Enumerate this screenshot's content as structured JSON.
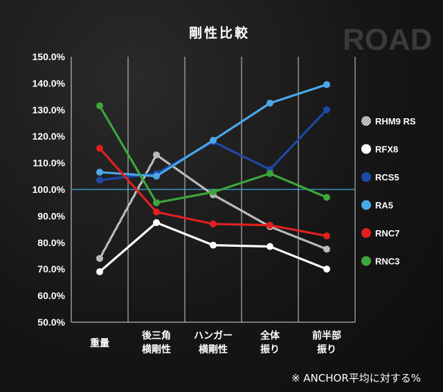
{
  "chart_data": {
    "type": "line",
    "title": "剛性比較",
    "watermark": "ROAD",
    "note": "※ ANCHOR平均に対する%",
    "categories": [
      [
        "重量"
      ],
      [
        "後三角",
        "横剛性"
      ],
      [
        "ハンガー",
        "横剛性"
      ],
      [
        "全体",
        "振り"
      ],
      [
        "前半部",
        "振り"
      ]
    ],
    "first_category_color": "#ffd84a",
    "yticks": [
      "50.0%",
      "60.0%",
      "70.0%",
      "80.0%",
      "90.0%",
      "100.0%",
      "110.0%",
      "120.0%",
      "130.0%",
      "140.0%",
      "150.0%"
    ],
    "ylim": [
      50,
      150
    ],
    "reference_line": {
      "value": 100,
      "color": "#3fa9e0"
    },
    "series": [
      {
        "name": "RHM9 RS",
        "color": "#a8a8a8",
        "hatched": true,
        "values": [
          74,
          113,
          98,
          86,
          77.5
        ]
      },
      {
        "name": "RFX8",
        "color": "#ffffff",
        "values": [
          69,
          87.5,
          79,
          78.5,
          70
        ]
      },
      {
        "name": "RCS5",
        "color": "#1c4aa8",
        "values": [
          103.5,
          106,
          118,
          107.5,
          130
        ]
      },
      {
        "name": "RA5",
        "color": "#4aa8e8",
        "values": [
          106.5,
          105,
          118.5,
          132.5,
          139.5
        ]
      },
      {
        "name": "RNC7",
        "color": "#e02020",
        "values": [
          115.5,
          91.5,
          87,
          86.5,
          82.5
        ]
      },
      {
        "name": "RNC3",
        "color": "#3ca63c",
        "values": [
          131.5,
          95,
          99,
          106,
          97
        ]
      }
    ]
  }
}
